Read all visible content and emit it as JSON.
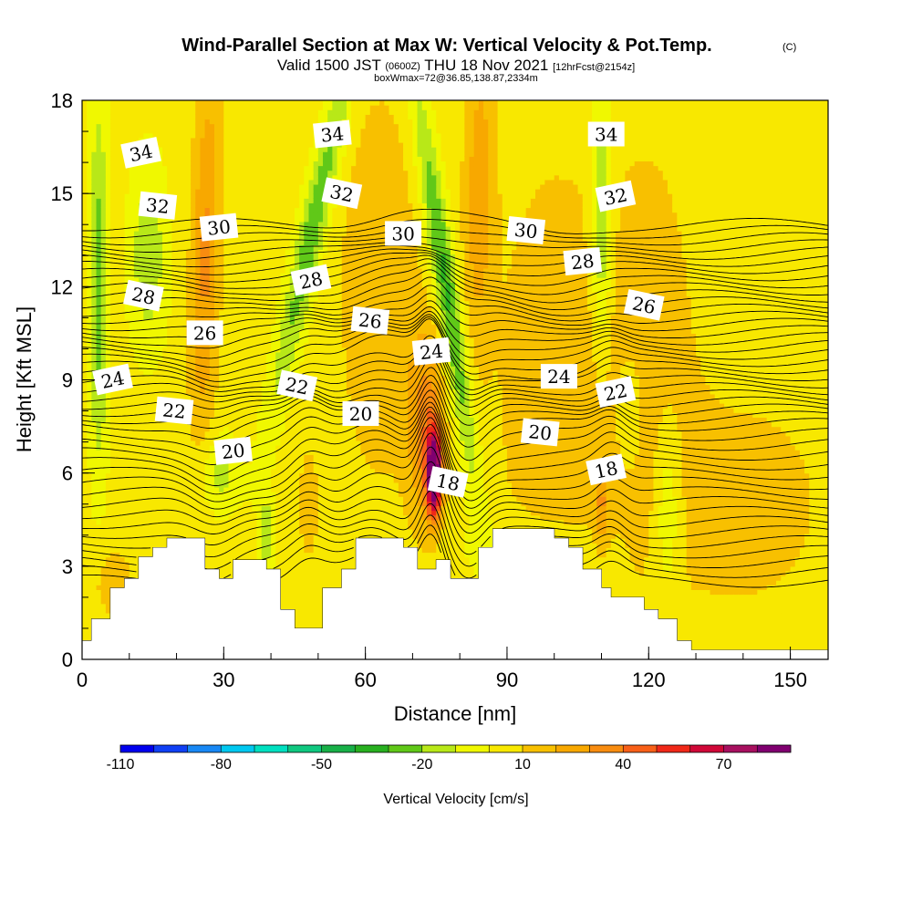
{
  "chart_data": {
    "type": "heatmap",
    "title": "Wind-Parallel Section at Max W: Vertical Velocity & Pot.Temp.",
    "title_mark": "(C)",
    "subtitle_parts": [
      "Valid 1500 JST",
      "(0600Z)",
      "THU 18 Nov 2021",
      "[12hrFcst@2154z]"
    ],
    "subtitle2": "boxWmax=72@36.85,138.87,2334m",
    "xlabel": "Distance [nm]",
    "ylabel": "Height [Kft MSL]",
    "xlim": [
      0,
      158
    ],
    "ylim": [
      0,
      18
    ],
    "x_ticks": [
      0,
      30,
      60,
      90,
      120,
      150
    ],
    "x_tick_labels": [
      "0",
      "30",
      "60",
      "90",
      "120",
      "150"
    ],
    "y_ticks": [
      0,
      3,
      6,
      9,
      12,
      15,
      18
    ],
    "y_tick_labels": [
      "0",
      "3",
      "6",
      "9",
      "12",
      "15",
      "18"
    ],
    "colorbar": {
      "label": "Vertical Velocity [cm/s]",
      "levels": [
        -110,
        -100,
        -90,
        -80,
        -70,
        -60,
        -50,
        -40,
        -30,
        -20,
        -10,
        0,
        10,
        20,
        30,
        40,
        50,
        60,
        70,
        80,
        90
      ],
      "colors": [
        "#0000ee",
        "#1040f5",
        "#1888f5",
        "#00c8f0",
        "#00e0c0",
        "#10c880",
        "#18b048",
        "#28b020",
        "#60c818",
        "#b8e818",
        "#f0f800",
        "#f8e800",
        "#f8c000",
        "#f8a800",
        "#f88c10",
        "#f86018",
        "#f02818",
        "#d00838",
        "#a81060",
        "#800070"
      ],
      "tick_values": [
        -110,
        -80,
        -50,
        -20,
        10,
        40,
        70
      ],
      "tick_labels": [
        "-110",
        "-80",
        "-50",
        "-20",
        "10",
        "40",
        "70"
      ]
    },
    "theta_labels": [
      {
        "text": "34",
        "x": 12.5,
        "y": 16.3
      },
      {
        "text": "34",
        "x": 53,
        "y": 16.9
      },
      {
        "text": "34",
        "x": 111,
        "y": 16.9
      },
      {
        "text": "32",
        "x": 16,
        "y": 14.6
      },
      {
        "text": "32",
        "x": 55,
        "y": 15.0
      },
      {
        "text": "32",
        "x": 113,
        "y": 14.9
      },
      {
        "text": "30",
        "x": 29,
        "y": 13.9
      },
      {
        "text": "30",
        "x": 68,
        "y": 13.7
      },
      {
        "text": "30",
        "x": 94,
        "y": 13.8
      },
      {
        "text": "28",
        "x": 13,
        "y": 11.7
      },
      {
        "text": "28",
        "x": 48.5,
        "y": 12.2
      },
      {
        "text": "28",
        "x": 106,
        "y": 12.8
      },
      {
        "text": "26",
        "x": 26,
        "y": 10.5
      },
      {
        "text": "26",
        "x": 61,
        "y": 10.9
      },
      {
        "text": "26",
        "x": 119,
        "y": 11.4
      },
      {
        "text": "24",
        "x": 6.5,
        "y": 9.0
      },
      {
        "text": "24",
        "x": 74,
        "y": 9.9
      },
      {
        "text": "24",
        "x": 101,
        "y": 9.1
      },
      {
        "text": "22",
        "x": 19.5,
        "y": 8.0
      },
      {
        "text": "22",
        "x": 45.5,
        "y": 8.8
      },
      {
        "text": "22",
        "x": 113,
        "y": 8.6
      },
      {
        "text": "20",
        "x": 32,
        "y": 6.7
      },
      {
        "text": "20",
        "x": 59,
        "y": 7.9
      },
      {
        "text": "20",
        "x": 97,
        "y": 7.3
      },
      {
        "text": "18",
        "x": 77.5,
        "y": 5.7
      },
      {
        "text": "18",
        "x": 111,
        "y": 6.1
      }
    ],
    "contour_colors": {
      "contour": "#000000",
      "label_bg": "#ffffff",
      "terrain": "#ffffff"
    }
  }
}
